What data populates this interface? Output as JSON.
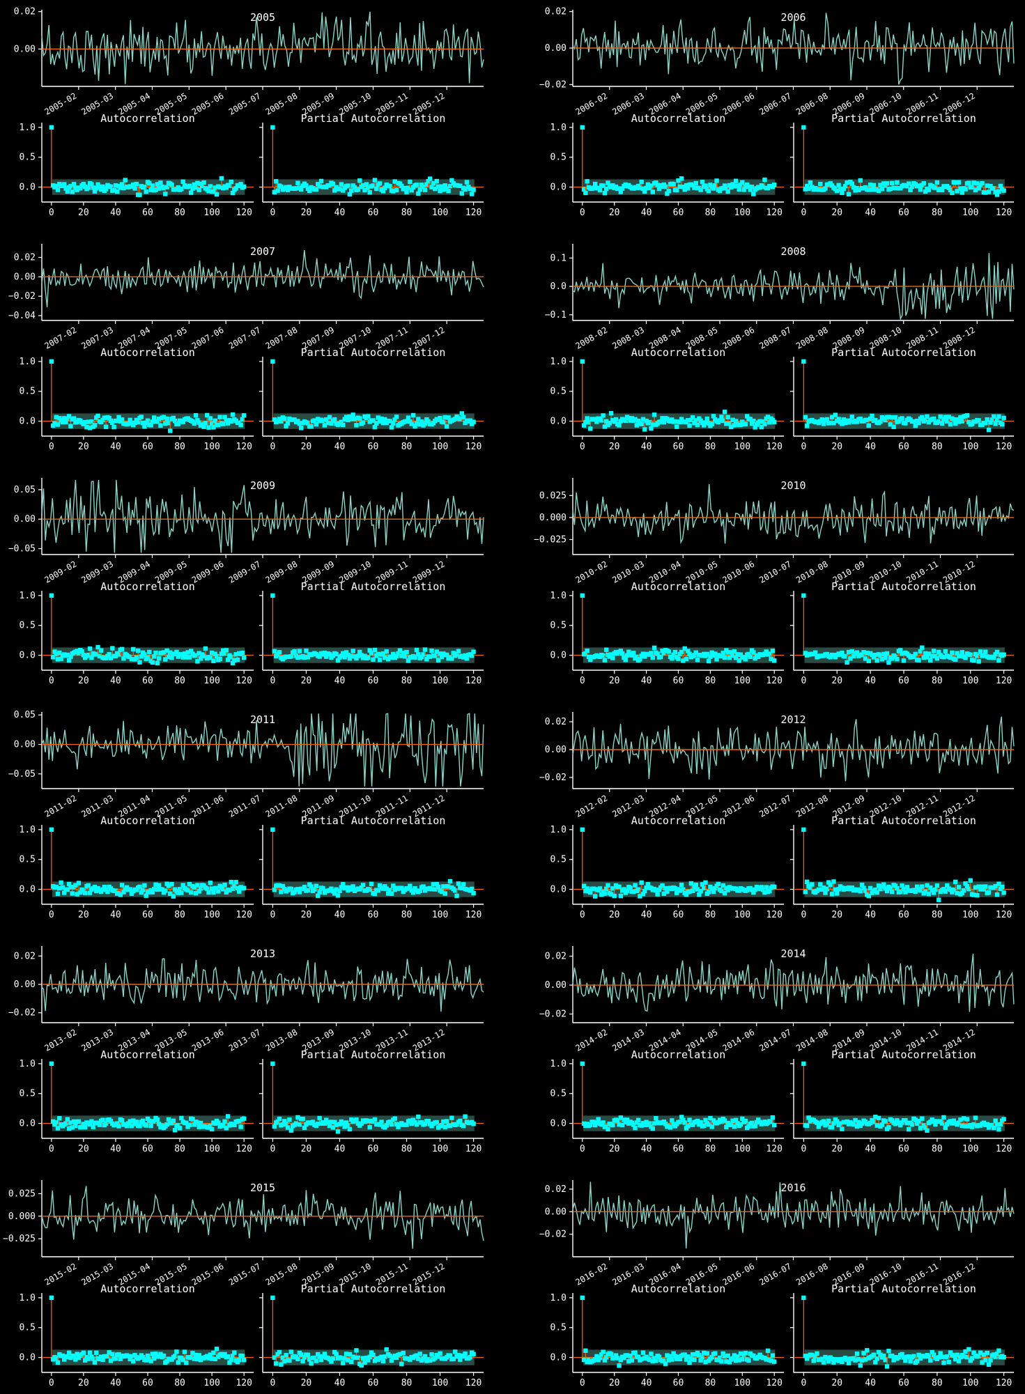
{
  "colors": {
    "background": "#000000",
    "foreground": "#ffffff",
    "series": "#8dd3c7",
    "mean_line": "#e8650f",
    "markers": "#00ffff",
    "stems": "#e8650f",
    "confidence_band": "#2a4a44"
  },
  "subplot_titles": {
    "acf": "Autocorrelation",
    "pacf": "Partial Autocorrelation"
  },
  "chart_data": [
    {
      "type": "line",
      "title": "2005",
      "yticks": [
        "0.02",
        "0.00"
      ],
      "ylim": [
        -0.02,
        0.021
      ],
      "xticks": [
        "2005-02",
        "2005-03",
        "2005-04",
        "2005-05",
        "2005-06",
        "2005-07",
        "2005-08",
        "2005-09",
        "2005-10",
        "2005-11",
        "2005-12"
      ],
      "amplitude": 0.0075
    },
    {
      "type": "line",
      "title": "2006",
      "yticks": [
        "0.02",
        "0.00",
        "−0.02"
      ],
      "ylim": [
        -0.021,
        0.021
      ],
      "xticks": [
        "2006-02",
        "2006-03",
        "2006-04",
        "2006-05",
        "2006-06",
        "2006-07",
        "2006-08",
        "2006-09",
        "2006-10",
        "2006-11",
        "2006-12"
      ],
      "amplitude": 0.0065
    },
    {
      "type": "line",
      "title": "2007",
      "yticks": [
        "0.02",
        "0.00",
        "−0.02",
        "−0.04"
      ],
      "ylim": [
        -0.045,
        0.034
      ],
      "xticks": [
        "2007-02",
        "2007-03",
        "2007-04",
        "2007-05",
        "2007-06",
        "2007-07",
        "2007-08",
        "2007-09",
        "2007-10",
        "2007-11",
        "2007-12"
      ],
      "amplitude": 0.009
    },
    {
      "type": "line",
      "title": "2008",
      "yticks": [
        "0.1",
        "0.0",
        "−0.1"
      ],
      "ylim": [
        -0.12,
        0.15
      ],
      "xticks": [
        "2008-02",
        "2008-03",
        "2008-04",
        "2008-05",
        "2008-06",
        "2008-07",
        "2008-08",
        "2008-09",
        "2008-10",
        "2008-11",
        "2008-12"
      ],
      "amplitude": 0.028
    },
    {
      "type": "line",
      "title": "2009",
      "yticks": [
        "0.05",
        "0.00",
        "−0.05"
      ],
      "ylim": [
        -0.06,
        0.07
      ],
      "xticks": [
        "2009-02",
        "2009-03",
        "2009-04",
        "2009-05",
        "2009-06",
        "2009-07",
        "2009-08",
        "2009-09",
        "2009-10",
        "2009-11",
        "2009-12"
      ],
      "amplitude": 0.02
    },
    {
      "type": "line",
      "title": "2010",
      "yticks": [
        "0.025",
        "0.000",
        "−0.025"
      ],
      "ylim": [
        -0.042,
        0.045
      ],
      "xticks": [
        "2010-02",
        "2010-03",
        "2010-04",
        "2010-05",
        "2010-06",
        "2010-07",
        "2010-08",
        "2010-09",
        "2010-10",
        "2010-11",
        "2010-12"
      ],
      "amplitude": 0.013
    },
    {
      "type": "line",
      "title": "2011",
      "yticks": [
        "0.05",
        "0.00",
        "−0.05"
      ],
      "ylim": [
        -0.075,
        0.055
      ],
      "xticks": [
        "2011-02",
        "2011-03",
        "2011-04",
        "2011-05",
        "2011-06",
        "2011-07",
        "2011-08",
        "2011-09",
        "2011-10",
        "2011-11",
        "2011-12"
      ],
      "amplitude": 0.017
    },
    {
      "type": "line",
      "title": "2012",
      "yticks": [
        "0.02",
        "0.00",
        "−0.02"
      ],
      "ylim": [
        -0.028,
        0.027
      ],
      "xticks": [
        "2012-02",
        "2012-03",
        "2012-04",
        "2012-05",
        "2012-06",
        "2012-07",
        "2012-08",
        "2012-09",
        "2012-10",
        "2012-11",
        "2012-12"
      ],
      "amplitude": 0.0085
    },
    {
      "type": "line",
      "title": "2013",
      "yticks": [
        "0.02",
        "0.00",
        "−0.02"
      ],
      "ylim": [
        -0.027,
        0.027
      ],
      "xticks": [
        "2013-02",
        "2013-03",
        "2013-04",
        "2013-05",
        "2013-06",
        "2013-07",
        "2013-08",
        "2013-09",
        "2013-10",
        "2013-11",
        "2013-12"
      ],
      "amplitude": 0.0075
    },
    {
      "type": "line",
      "title": "2014",
      "yticks": [
        "0.02",
        "0.00",
        "−0.02"
      ],
      "ylim": [
        -0.026,
        0.027
      ],
      "xticks": [
        "2014-02",
        "2014-03",
        "2014-04",
        "2014-05",
        "2014-06",
        "2014-07",
        "2014-08",
        "2014-09",
        "2014-10",
        "2014-11",
        "2014-12"
      ],
      "amplitude": 0.0075
    },
    {
      "type": "line",
      "title": "2015",
      "yticks": [
        "0.025",
        "0.000",
        "−0.025"
      ],
      "ylim": [
        -0.045,
        0.04
      ],
      "xticks": [
        "2015-02",
        "2015-03",
        "2015-04",
        "2015-05",
        "2015-06",
        "2015-07",
        "2015-08",
        "2015-09",
        "2015-10",
        "2015-11",
        "2015-12"
      ],
      "amplitude": 0.011
    },
    {
      "type": "line",
      "title": "2016",
      "yticks": [
        "0.02",
        "0.00",
        "−0.02"
      ],
      "ylim": [
        -0.04,
        0.028
      ],
      "xticks": [
        "2016-02",
        "2016-03",
        "2016-04",
        "2016-05",
        "2016-06",
        "2016-07",
        "2016-08",
        "2016-09",
        "2016-10",
        "2016-11",
        "2016-12"
      ],
      "amplitude": 0.009
    }
  ],
  "correlogram": {
    "type": "scatter",
    "yticks": [
      "1.0",
      "0.5",
      "0.0"
    ],
    "ylim": [
      -0.25,
      1.08
    ],
    "xticks": [
      "0",
      "20",
      "40",
      "60",
      "80",
      "100",
      "120"
    ],
    "xlim": [
      -6,
      126
    ],
    "max_lag": 120,
    "confidence_band": 0.13
  }
}
